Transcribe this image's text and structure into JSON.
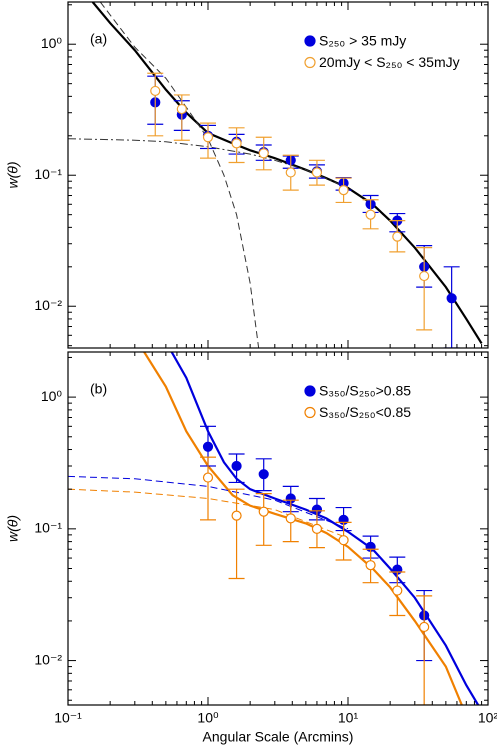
{
  "chart_data": [
    {
      "type": "line",
      "panel_label": "(a)",
      "ylabel": "w(θ)",
      "log_x": true,
      "log_y": true,
      "legend": "upper right",
      "xlim": [
        0.1,
        100
      ],
      "xticks": [
        0.1,
        1,
        10,
        100
      ],
      "ylim": [
        0.0048,
        2.1
      ],
      "yticks": [
        {
          "value": 0.01,
          "label": "10⁻²"
        },
        {
          "value": 0.1,
          "label": "10⁻¹"
        },
        {
          "value": 1,
          "label": "10⁰"
        }
      ],
      "series": [
        {
          "name": "S₂₅₀ > 35 mJy",
          "color": "#0000dd",
          "marker": "filled",
          "x": [
            0.42,
            0.65,
            1.0,
            1.6,
            2.5,
            3.9,
            6.0,
            9.3,
            14.5,
            22.5,
            35,
            55
          ],
          "values": [
            0.36,
            0.29,
            0.2,
            0.18,
            0.15,
            0.13,
            0.107,
            0.087,
            0.06,
            0.045,
            0.02,
            0.0115
          ],
          "lower": [
            0.245,
            0.22,
            0.16,
            0.145,
            0.13,
            0.113,
            0.095,
            0.077,
            0.052,
            0.037,
            0.014,
            0.0048
          ],
          "upper": [
            0.57,
            0.37,
            0.24,
            0.205,
            0.17,
            0.14,
            0.12,
            0.096,
            0.07,
            0.051,
            0.029,
            0.02
          ]
        },
        {
          "name": "20mJy < S₂₅₀ < 35mJy",
          "color": "#f0a030",
          "marker": "open",
          "x": [
            0.42,
            0.65,
            1.0,
            1.6,
            2.5,
            3.9,
            6.0,
            9.3,
            14.5,
            22.5,
            35
          ],
          "values": [
            0.44,
            0.32,
            0.195,
            0.175,
            0.147,
            0.105,
            0.105,
            0.077,
            0.05,
            0.034,
            0.017
          ],
          "lower": [
            0.2,
            0.185,
            0.135,
            0.125,
            0.11,
            0.077,
            0.084,
            0.062,
            0.039,
            0.026,
            0.0066
          ],
          "upper": [
            0.6,
            0.41,
            0.25,
            0.23,
            0.195,
            0.142,
            0.13,
            0.095,
            0.065,
            0.045,
            0.028
          ]
        }
      ],
      "curves": [
        {
          "color": "#000000",
          "style": "solid",
          "x": [
            0.15,
            0.2,
            0.3,
            0.5,
            0.7,
            1,
            1.5,
            2,
            3,
            5,
            7,
            10,
            15,
            20,
            30,
            50,
            70,
            90
          ],
          "values": [
            2.1,
            1.45,
            0.9,
            0.45,
            0.3,
            0.21,
            0.175,
            0.155,
            0.135,
            0.11,
            0.095,
            0.08,
            0.06,
            0.045,
            0.028,
            0.014,
            0.008,
            0.0052
          ]
        },
        {
          "color": "#333333",
          "style": "dashed",
          "x": [
            0.17,
            0.3,
            0.5,
            0.7,
            1,
            1.3,
            1.6,
            2,
            2.3
          ],
          "values": [
            2.1,
            0.95,
            0.55,
            0.33,
            0.19,
            0.1,
            0.05,
            0.015,
            0.0048
          ]
        },
        {
          "color": "#333333",
          "style": "dashdot",
          "x": [
            0.1,
            0.3,
            0.5,
            1,
            2,
            3,
            5,
            10
          ],
          "values": [
            0.19,
            0.185,
            0.18,
            0.165,
            0.145,
            0.13,
            0.11,
            0.08
          ]
        }
      ]
    },
    {
      "type": "line",
      "panel_label": "(b)",
      "ylabel": "w(θ)",
      "xlabel": "Angular Scale (Arcmins)",
      "log_x": true,
      "log_y": true,
      "legend": "upper right",
      "xlim": [
        0.1,
        100
      ],
      "xticks": [
        {
          "value": 0.1,
          "label": "10⁻¹"
        },
        {
          "value": 1,
          "label": "10⁰"
        },
        {
          "value": 10,
          "label": "10¹"
        },
        {
          "value": 100,
          "label": "10²"
        }
      ],
      "ylim": [
        0.0046,
        2.2
      ],
      "yticks": [
        {
          "value": 0.01,
          "label": "10⁻²"
        },
        {
          "value": 0.1,
          "label": "10⁻¹"
        },
        {
          "value": 1,
          "label": "10⁰"
        }
      ],
      "series": [
        {
          "name": "S₃₅₀/S₂₅₀>0.85",
          "color": "#0000dd",
          "marker": "filled",
          "x": [
            1.0,
            1.6,
            2.5,
            3.9,
            6.0,
            9.3,
            14.5,
            22.5,
            35
          ],
          "values": [
            0.42,
            0.3,
            0.26,
            0.17,
            0.14,
            0.117,
            0.073,
            0.049,
            0.022
          ],
          "lower": [
            0.3,
            0.225,
            0.195,
            0.135,
            0.117,
            0.097,
            0.06,
            0.039,
            0.01
          ],
          "upper": [
            0.6,
            0.37,
            0.34,
            0.21,
            0.17,
            0.145,
            0.088,
            0.061,
            0.034
          ]
        },
        {
          "name": "S₃₅₀/S₂₅₀<0.85",
          "color": "#f08000",
          "marker": "open",
          "x": [
            1.0,
            1.6,
            2.5,
            3.9,
            6.0,
            9.3,
            14.5,
            22.5,
            35
          ],
          "values": [
            0.245,
            0.126,
            0.135,
            0.12,
            0.1,
            0.082,
            0.053,
            0.034,
            0.018
          ],
          "lower": [
            0.117,
            0.042,
            0.075,
            0.08,
            0.072,
            0.058,
            0.039,
            0.022,
            0.0046
          ],
          "upper": [
            0.35,
            0.2,
            0.185,
            0.165,
            0.137,
            0.112,
            0.07,
            0.047,
            0.031
          ]
        }
      ],
      "curves": [
        {
          "color": "#0000dd",
          "style": "solid",
          "x": [
            0.55,
            0.7,
            1,
            1.3,
            1.6,
            2,
            3,
            5,
            7,
            10,
            15,
            20,
            30,
            50,
            70,
            85
          ],
          "values": [
            2.2,
            1.4,
            0.55,
            0.32,
            0.24,
            0.2,
            0.17,
            0.14,
            0.12,
            0.095,
            0.07,
            0.05,
            0.03,
            0.013,
            0.0065,
            0.0046
          ]
        },
        {
          "color": "#f08000",
          "style": "solid",
          "x": [
            0.35,
            0.5,
            0.7,
            1,
            1.5,
            2,
            3,
            5,
            7,
            10,
            15,
            20,
            30,
            50,
            65
          ],
          "values": [
            2.2,
            1.2,
            0.55,
            0.3,
            0.18,
            0.15,
            0.13,
            0.11,
            0.093,
            0.073,
            0.05,
            0.036,
            0.02,
            0.009,
            0.0046
          ]
        },
        {
          "color": "#0000dd",
          "style": "dashed",
          "x": [
            0.1,
            0.3,
            1,
            3,
            10
          ],
          "values": [
            0.25,
            0.24,
            0.21,
            0.165,
            0.1
          ]
        },
        {
          "color": "#f08000",
          "style": "dashed",
          "x": [
            0.1,
            0.3,
            1,
            3,
            10
          ],
          "values": [
            0.2,
            0.19,
            0.17,
            0.14,
            0.085
          ]
        }
      ]
    }
  ]
}
